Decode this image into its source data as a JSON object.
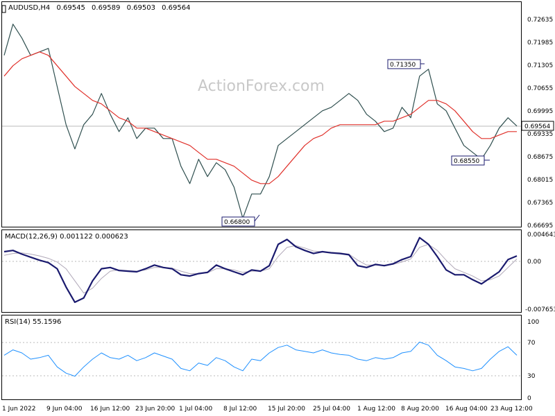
{
  "header": {
    "symbol": "AUDUSD,H4",
    "open": "0.69545",
    "high": "0.69589",
    "low": "0.69503",
    "close": "0.69564"
  },
  "watermark": "ActionForex.com",
  "colors": {
    "candle": "#2f4f4f",
    "ma": "#e0302a",
    "macd_line": "#1a1a6e",
    "signal_line": "#b0a8b8",
    "rsi_line": "#1e90ff",
    "label_border": "#1a1a6e",
    "grid": "#b8b8b8"
  },
  "chart_data": [
    {
      "type": "line",
      "title": "AUDUSD,H4",
      "price_ticks": [
        "0.72635",
        "0.71985",
        "0.71305",
        "0.70655",
        "0.69995",
        "0.69335",
        "0.68675",
        "0.68015",
        "0.67365",
        "0.66695"
      ],
      "current_price": "0.69564",
      "ylim": [
        0.66695,
        0.72635
      ],
      "x_ticks": [
        "1 Jun 2022",
        "9 Jun 04:00",
        "16 Jun 12:00",
        "23 Jun 20:00",
        "1 Jul 04:00",
        "8 Jul 12:00",
        "15 Jul 20:00",
        "25 Jul 04:00",
        "1 Aug 12:00",
        "8 Aug 20:00",
        "16 Aug 04:00",
        "23 Aug 12:00"
      ],
      "annotations": [
        {
          "text": "0.71350",
          "index": 47,
          "value": 0.7135
        },
        {
          "text": "0.66800",
          "index": 27,
          "value": 0.668
        },
        {
          "text": "0.68550",
          "index": 55,
          "value": 0.6855
        }
      ],
      "series": [
        {
          "values": [
            0.716,
            0.725,
            0.721,
            0.716,
            0.717,
            0.718,
            0.707,
            0.696,
            0.689,
            0.696,
            0.699,
            0.705,
            0.699,
            0.694,
            0.698,
            0.692,
            0.695,
            0.695,
            0.692,
            0.692,
            0.684,
            0.679,
            0.686,
            0.681,
            0.685,
            0.683,
            0.678,
            0.669,
            0.676,
            0.676,
            0.681,
            0.69,
            0.692,
            0.694,
            0.696,
            0.698,
            0.7,
            0.701,
            0.703,
            0.705,
            0.703,
            0.699,
            0.697,
            0.694,
            0.695,
            0.701,
            0.698,
            0.71,
            0.712,
            0.702,
            0.7,
            0.695,
            0.69,
            0.688,
            0.686,
            0.69,
            0.695,
            0.698,
            0.6956
          ]
        },
        {
          "values": [
            0.71,
            0.713,
            0.715,
            0.716,
            0.717,
            0.716,
            0.713,
            0.71,
            0.707,
            0.705,
            0.703,
            0.702,
            0.7,
            0.698,
            0.697,
            0.695,
            0.695,
            0.694,
            0.693,
            0.692,
            0.691,
            0.69,
            0.688,
            0.686,
            0.686,
            0.685,
            0.684,
            0.682,
            0.68,
            0.679,
            0.679,
            0.681,
            0.684,
            0.687,
            0.69,
            0.692,
            0.693,
            0.695,
            0.696,
            0.696,
            0.696,
            0.696,
            0.696,
            0.697,
            0.697,
            0.698,
            0.699,
            0.701,
            0.703,
            0.703,
            0.702,
            0.7,
            0.697,
            0.694,
            0.692,
            0.692,
            0.693,
            0.694,
            0.694
          ]
        }
      ]
    },
    {
      "type": "line",
      "title": "MACD(12,26,9) 0.001122 0.000623",
      "y_ticks": [
        "0.004643",
        "0.00",
        "-0.007653"
      ],
      "ylim": [
        -0.007653,
        0.004643
      ],
      "series": [
        {
          "values": [
            0.0018,
            0.002,
            0.0014,
            0.0009,
            0.0004,
            0.0,
            -0.001,
            -0.004,
            -0.0065,
            -0.0058,
            -0.003,
            -0.001,
            -0.0008,
            -0.0013,
            -0.0014,
            -0.0015,
            -0.001,
            -0.0004,
            -0.0008,
            -0.001,
            -0.002,
            -0.0022,
            -0.0018,
            -0.0016,
            -0.0004,
            -0.001,
            -0.0015,
            -0.002,
            -0.0012,
            -0.0014,
            -0.0005,
            0.003,
            0.0038,
            0.0026,
            0.002,
            0.0015,
            0.0018,
            0.0016,
            0.0015,
            0.0013,
            -0.0005,
            -0.0008,
            -0.0003,
            -0.0005,
            -0.0002,
            0.0005,
            0.001,
            0.0041,
            0.003,
            0.001,
            -0.0012,
            -0.002,
            -0.002,
            -0.0028,
            -0.0035,
            -0.0025,
            -0.0015,
            0.0005,
            0.0011
          ]
        },
        {
          "values": [
            0.0012,
            0.0015,
            0.0016,
            0.0014,
            0.0011,
            0.0007,
            0.0001,
            -0.001,
            -0.003,
            -0.005,
            -0.0042,
            -0.0026,
            -0.0014,
            -0.0012,
            -0.0013,
            -0.0014,
            -0.0012,
            -0.0008,
            -0.0008,
            -0.0009,
            -0.0014,
            -0.0018,
            -0.0018,
            -0.0017,
            -0.001,
            -0.001,
            -0.0012,
            -0.0016,
            -0.0014,
            -0.0014,
            -0.001,
            0.001,
            0.0025,
            0.0028,
            0.0024,
            0.0019,
            0.0018,
            0.0017,
            0.0016,
            0.0014,
            0.0004,
            -0.0004,
            -0.0004,
            -0.0004,
            -0.0003,
            0.0001,
            0.0006,
            0.0025,
            0.003,
            0.002,
            0.0004,
            -0.001,
            -0.0016,
            -0.0022,
            -0.003,
            -0.0028,
            -0.0022,
            -0.0008,
            0.0006
          ]
        }
      ]
    },
    {
      "type": "line",
      "title": "RSI(14) 55.1596",
      "y_ticks": [
        "100",
        "70",
        "30",
        "0"
      ],
      "ylim": [
        0,
        100
      ],
      "series": [
        {
          "values": [
            55,
            62,
            58,
            50,
            52,
            55,
            40,
            32,
            28,
            40,
            50,
            58,
            52,
            50,
            55,
            48,
            52,
            58,
            54,
            50,
            38,
            35,
            45,
            42,
            52,
            48,
            40,
            35,
            50,
            48,
            58,
            65,
            68,
            62,
            60,
            58,
            62,
            58,
            56,
            55,
            50,
            48,
            52,
            50,
            52,
            58,
            60,
            72,
            68,
            55,
            48,
            40,
            38,
            35,
            38,
            50,
            60,
            66,
            55
          ]
        }
      ]
    }
  ]
}
